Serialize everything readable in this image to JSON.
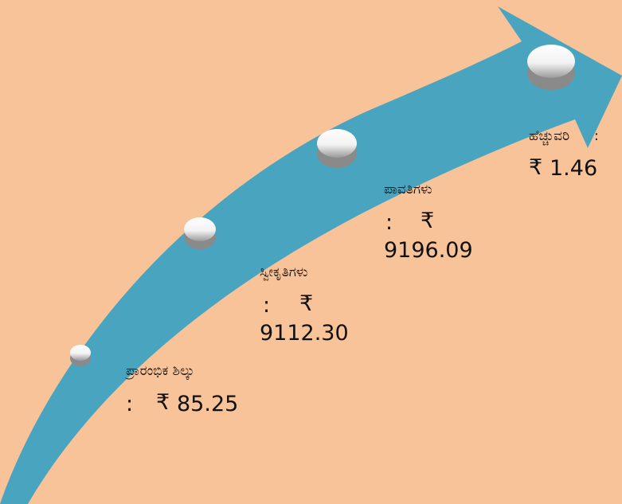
{
  "stages": [
    {
      "label": "ಪ್ರಾರಂಭಿಕ ಶಿಲ್ಕು",
      "separator": ":",
      "currency": "₹",
      "amount": "85.25"
    },
    {
      "label": "ಸ್ವೀಕೃತಿಗಳು",
      "separator": ":",
      "currency": "₹",
      "amount": "9112.30"
    },
    {
      "label": "ಪಾವತಿಗಳು",
      "separator": ":",
      "currency": "₹",
      "amount": "9196.09"
    },
    {
      "label": "ಹೆಚ್ಚುವರಿ",
      "separator": ":",
      "currency": "₹",
      "amount": "1.46"
    }
  ]
}
